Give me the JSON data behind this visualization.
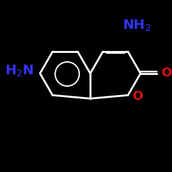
{
  "background_color": "#000000",
  "bond_color": "#ffffff",
  "bond_width": 2.0,
  "nh2_color": "#3333ff",
  "o_color": "#dd1111",
  "font_size_nh2": 14,
  "font_size_o": 13,
  "figsize": [
    2.5,
    2.5
  ],
  "dpi": 100,
  "L": 0.155
}
